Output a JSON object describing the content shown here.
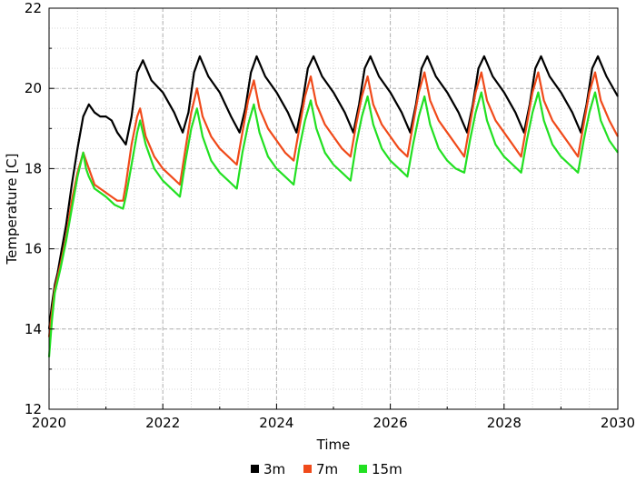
{
  "chart_data": {
    "type": "line",
    "title": "",
    "xlabel": "Time",
    "ylabel": "Temperature [C]",
    "xlim": [
      2020,
      2030
    ],
    "ylim": [
      12,
      22
    ],
    "x_major_ticks": [
      2020,
      2022,
      2024,
      2026,
      2028,
      2030
    ],
    "x_tick_labels": [
      "2020",
      "2022",
      "2024",
      "2026",
      "2028",
      "2030"
    ],
    "y_major_ticks": [
      12,
      14,
      16,
      18,
      20,
      22
    ],
    "y_tick_labels": [
      "12",
      "14",
      "16",
      "18",
      "20",
      "22"
    ],
    "grid": true,
    "legend_position": "bottom-center",
    "series": [
      {
        "name": "3m",
        "color": "#000000",
        "points": [
          [
            2020.0,
            14.0
          ],
          [
            2020.05,
            14.6
          ],
          [
            2020.1,
            15.1
          ],
          [
            2020.15,
            15.4
          ],
          [
            2020.2,
            15.8
          ],
          [
            2020.3,
            16.6
          ],
          [
            2020.4,
            17.6
          ],
          [
            2020.5,
            18.5
          ],
          [
            2020.6,
            19.3
          ],
          [
            2020.7,
            19.6
          ],
          [
            2020.8,
            19.4
          ],
          [
            2020.9,
            19.3
          ],
          [
            2021.0,
            19.3
          ],
          [
            2021.1,
            19.2
          ],
          [
            2021.2,
            18.9
          ],
          [
            2021.3,
            18.7
          ],
          [
            2021.35,
            18.6
          ],
          [
            2021.45,
            19.3
          ],
          [
            2021.55,
            20.4
          ],
          [
            2021.65,
            20.7
          ],
          [
            2021.8,
            20.2
          ],
          [
            2022.0,
            19.9
          ],
          [
            2022.2,
            19.4
          ],
          [
            2022.35,
            18.9
          ],
          [
            2022.45,
            19.4
          ],
          [
            2022.55,
            20.4
          ],
          [
            2022.65,
            20.8
          ],
          [
            2022.8,
            20.3
          ],
          [
            2023.0,
            19.9
          ],
          [
            2023.2,
            19.3
          ],
          [
            2023.35,
            18.9
          ],
          [
            2023.45,
            19.5
          ],
          [
            2023.55,
            20.4
          ],
          [
            2023.65,
            20.8
          ],
          [
            2023.8,
            20.3
          ],
          [
            2024.0,
            19.9
          ],
          [
            2024.2,
            19.4
          ],
          [
            2024.35,
            18.9
          ],
          [
            2024.45,
            19.6
          ],
          [
            2024.55,
            20.5
          ],
          [
            2024.65,
            20.8
          ],
          [
            2024.8,
            20.3
          ],
          [
            2025.0,
            19.9
          ],
          [
            2025.2,
            19.4
          ],
          [
            2025.35,
            18.9
          ],
          [
            2025.45,
            19.6
          ],
          [
            2025.55,
            20.5
          ],
          [
            2025.65,
            20.8
          ],
          [
            2025.8,
            20.3
          ],
          [
            2026.0,
            19.9
          ],
          [
            2026.2,
            19.4
          ],
          [
            2026.35,
            18.9
          ],
          [
            2026.45,
            19.6
          ],
          [
            2026.55,
            20.5
          ],
          [
            2026.65,
            20.8
          ],
          [
            2026.8,
            20.3
          ],
          [
            2027.0,
            19.9
          ],
          [
            2027.2,
            19.4
          ],
          [
            2027.35,
            18.9
          ],
          [
            2027.45,
            19.6
          ],
          [
            2027.55,
            20.5
          ],
          [
            2027.65,
            20.8
          ],
          [
            2027.8,
            20.3
          ],
          [
            2028.0,
            19.9
          ],
          [
            2028.2,
            19.4
          ],
          [
            2028.35,
            18.9
          ],
          [
            2028.45,
            19.6
          ],
          [
            2028.55,
            20.5
          ],
          [
            2028.65,
            20.8
          ],
          [
            2028.8,
            20.3
          ],
          [
            2029.0,
            19.9
          ],
          [
            2029.2,
            19.4
          ],
          [
            2029.35,
            18.9
          ],
          [
            2029.45,
            19.6
          ],
          [
            2029.55,
            20.5
          ],
          [
            2029.65,
            20.8
          ],
          [
            2029.8,
            20.3
          ],
          [
            2030.0,
            19.8
          ]
        ]
      },
      {
        "name": "7m",
        "color": "#f04a1a",
        "points": [
          [
            2020.0,
            13.8
          ],
          [
            2020.05,
            14.4
          ],
          [
            2020.1,
            15.0
          ],
          [
            2020.2,
            15.6
          ],
          [
            2020.3,
            16.3
          ],
          [
            2020.4,
            17.2
          ],
          [
            2020.5,
            17.9
          ],
          [
            2020.6,
            18.4
          ],
          [
            2020.65,
            18.2
          ],
          [
            2020.7,
            18.0
          ],
          [
            2020.8,
            17.6
          ],
          [
            2021.0,
            17.4
          ],
          [
            2021.2,
            17.2
          ],
          [
            2021.3,
            17.2
          ],
          [
            2021.35,
            17.6
          ],
          [
            2021.45,
            18.6
          ],
          [
            2021.55,
            19.3
          ],
          [
            2021.6,
            19.5
          ],
          [
            2021.7,
            18.8
          ],
          [
            2021.85,
            18.3
          ],
          [
            2022.0,
            18.0
          ],
          [
            2022.15,
            17.8
          ],
          [
            2022.3,
            17.6
          ],
          [
            2022.4,
            18.5
          ],
          [
            2022.5,
            19.4
          ],
          [
            2022.6,
            20.0
          ],
          [
            2022.7,
            19.3
          ],
          [
            2022.85,
            18.8
          ],
          [
            2023.0,
            18.5
          ],
          [
            2023.15,
            18.3
          ],
          [
            2023.3,
            18.1
          ],
          [
            2023.4,
            18.9
          ],
          [
            2023.5,
            19.7
          ],
          [
            2023.6,
            20.2
          ],
          [
            2023.7,
            19.5
          ],
          [
            2023.85,
            19.0
          ],
          [
            2024.0,
            18.7
          ],
          [
            2024.15,
            18.4
          ],
          [
            2024.3,
            18.2
          ],
          [
            2024.4,
            19.0
          ],
          [
            2024.5,
            19.8
          ],
          [
            2024.6,
            20.3
          ],
          [
            2024.7,
            19.6
          ],
          [
            2024.85,
            19.1
          ],
          [
            2025.0,
            18.8
          ],
          [
            2025.15,
            18.5
          ],
          [
            2025.3,
            18.3
          ],
          [
            2025.4,
            19.1
          ],
          [
            2025.5,
            19.8
          ],
          [
            2025.6,
            20.3
          ],
          [
            2025.7,
            19.6
          ],
          [
            2025.85,
            19.1
          ],
          [
            2026.0,
            18.8
          ],
          [
            2026.15,
            18.5
          ],
          [
            2026.3,
            18.3
          ],
          [
            2026.4,
            19.1
          ],
          [
            2026.5,
            19.9
          ],
          [
            2026.6,
            20.4
          ],
          [
            2026.7,
            19.7
          ],
          [
            2026.85,
            19.2
          ],
          [
            2027.0,
            18.9
          ],
          [
            2027.15,
            18.6
          ],
          [
            2027.3,
            18.3
          ],
          [
            2027.4,
            19.1
          ],
          [
            2027.5,
            19.9
          ],
          [
            2027.6,
            20.4
          ],
          [
            2027.7,
            19.7
          ],
          [
            2027.85,
            19.2
          ],
          [
            2028.0,
            18.9
          ],
          [
            2028.15,
            18.6
          ],
          [
            2028.3,
            18.3
          ],
          [
            2028.4,
            19.1
          ],
          [
            2028.5,
            19.9
          ],
          [
            2028.6,
            20.4
          ],
          [
            2028.7,
            19.7
          ],
          [
            2028.85,
            19.2
          ],
          [
            2029.0,
            18.9
          ],
          [
            2029.15,
            18.6
          ],
          [
            2029.3,
            18.3
          ],
          [
            2029.4,
            19.1
          ],
          [
            2029.5,
            19.9
          ],
          [
            2029.6,
            20.4
          ],
          [
            2029.7,
            19.7
          ],
          [
            2029.85,
            19.2
          ],
          [
            2030.0,
            18.8
          ]
        ]
      },
      {
        "name": "15m",
        "color": "#22e022",
        "points": [
          [
            2020.0,
            13.3
          ],
          [
            2020.05,
            14.2
          ],
          [
            2020.1,
            14.9
          ],
          [
            2020.2,
            15.5
          ],
          [
            2020.3,
            16.2
          ],
          [
            2020.4,
            17.0
          ],
          [
            2020.5,
            17.8
          ],
          [
            2020.6,
            18.4
          ],
          [
            2020.65,
            18.0
          ],
          [
            2020.7,
            17.8
          ],
          [
            2020.8,
            17.5
          ],
          [
            2021.0,
            17.3
          ],
          [
            2021.15,
            17.1
          ],
          [
            2021.3,
            17.0
          ],
          [
            2021.35,
            17.3
          ],
          [
            2021.45,
            18.1
          ],
          [
            2021.55,
            18.9
          ],
          [
            2021.6,
            19.2
          ],
          [
            2021.7,
            18.6
          ],
          [
            2021.85,
            18.0
          ],
          [
            2022.0,
            17.7
          ],
          [
            2022.15,
            17.5
          ],
          [
            2022.3,
            17.3
          ],
          [
            2022.4,
            18.2
          ],
          [
            2022.5,
            19.0
          ],
          [
            2022.6,
            19.5
          ],
          [
            2022.7,
            18.8
          ],
          [
            2022.85,
            18.2
          ],
          [
            2023.0,
            17.9
          ],
          [
            2023.15,
            17.7
          ],
          [
            2023.3,
            17.5
          ],
          [
            2023.4,
            18.4
          ],
          [
            2023.5,
            19.1
          ],
          [
            2023.6,
            19.6
          ],
          [
            2023.7,
            18.9
          ],
          [
            2023.85,
            18.3
          ],
          [
            2024.0,
            18.0
          ],
          [
            2024.15,
            17.8
          ],
          [
            2024.3,
            17.6
          ],
          [
            2024.4,
            18.5
          ],
          [
            2024.5,
            19.2
          ],
          [
            2024.6,
            19.7
          ],
          [
            2024.7,
            19.0
          ],
          [
            2024.85,
            18.4
          ],
          [
            2025.0,
            18.1
          ],
          [
            2025.15,
            17.9
          ],
          [
            2025.3,
            17.7
          ],
          [
            2025.4,
            18.6
          ],
          [
            2025.5,
            19.3
          ],
          [
            2025.6,
            19.8
          ],
          [
            2025.7,
            19.1
          ],
          [
            2025.85,
            18.5
          ],
          [
            2026.0,
            18.2
          ],
          [
            2026.15,
            18.0
          ],
          [
            2026.3,
            17.8
          ],
          [
            2026.4,
            18.6
          ],
          [
            2026.5,
            19.3
          ],
          [
            2026.6,
            19.8
          ],
          [
            2026.7,
            19.1
          ],
          [
            2026.85,
            18.5
          ],
          [
            2027.0,
            18.2
          ],
          [
            2027.15,
            18.0
          ],
          [
            2027.3,
            17.9
          ],
          [
            2027.4,
            18.7
          ],
          [
            2027.5,
            19.4
          ],
          [
            2027.6,
            19.9
          ],
          [
            2027.7,
            19.2
          ],
          [
            2027.85,
            18.6
          ],
          [
            2028.0,
            18.3
          ],
          [
            2028.15,
            18.1
          ],
          [
            2028.3,
            17.9
          ],
          [
            2028.4,
            18.7
          ],
          [
            2028.5,
            19.4
          ],
          [
            2028.6,
            19.9
          ],
          [
            2028.7,
            19.2
          ],
          [
            2028.85,
            18.6
          ],
          [
            2029.0,
            18.3
          ],
          [
            2029.15,
            18.1
          ],
          [
            2029.3,
            17.9
          ],
          [
            2029.4,
            18.7
          ],
          [
            2029.5,
            19.4
          ],
          [
            2029.6,
            19.9
          ],
          [
            2029.7,
            19.2
          ],
          [
            2029.85,
            18.7
          ],
          [
            2030.0,
            18.4
          ]
        ]
      }
    ]
  }
}
